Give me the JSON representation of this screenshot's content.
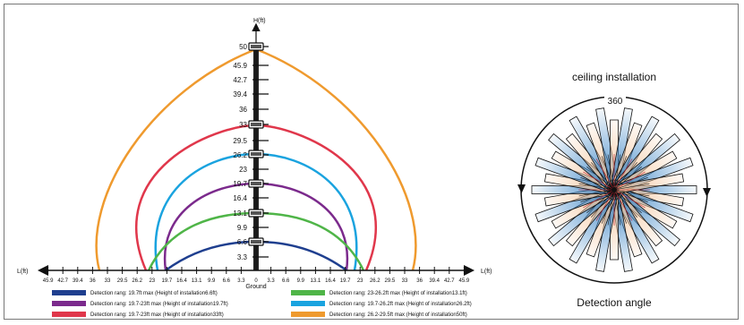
{
  "diagram": {
    "axis": {
      "h_label": "H(ft)",
      "l_label_left": "L(ft)",
      "l_label_right": "L(ft)",
      "ground_label": "Ground",
      "h_ticks": [
        "50",
        "45.9",
        "42.7",
        "39.4",
        "36",
        "33",
        "29.5",
        "26.2",
        "23",
        "19.7",
        "16.4",
        "13.1",
        "9.9",
        "6.6",
        "3.3"
      ],
      "l_ticks_left": [
        "45.9",
        "42.7",
        "39.4",
        "36",
        "33",
        "29.5",
        "26.2",
        "23",
        "19.7",
        "16.4",
        "13.1",
        "9.9",
        "6.6",
        "3.3"
      ],
      "l_zero": "0",
      "l_ticks_right": [
        "3.3",
        "6.6",
        "9.9",
        "13.1",
        "16.4",
        "19.7",
        "23",
        "26.2",
        "29.5",
        "33",
        "36",
        "39.4",
        "42.7",
        "45.9"
      ]
    },
    "zones": [
      {
        "label": "Detection rang: 19.7ft max (Height of installation6.6ft)",
        "color": "#1f3f8f"
      },
      {
        "label": "Detection rang: 23-26.2ft max (Height of installation13.1ft)",
        "color": "#4fb548"
      },
      {
        "label": "Detection rang: 19.7-23ft max (Height of installation19.7ft)",
        "color": "#7b2a8c"
      },
      {
        "label": "Detection rang: 19.7-26.2ft max (Height of installation26.2ft)",
        "color": "#1aa3df"
      },
      {
        "label": "Detection rang: 19.7-23ft max (Height of installation33ft)",
        "color": "#e0374b"
      },
      {
        "label": "Detection rang: 26.2-29.5ft max (Height of installation50ft)",
        "color": "#ef9a2e"
      }
    ]
  },
  "ceiling": {
    "title": "ceiling installation",
    "angle_value": "360",
    "caption": "Detection angle",
    "colors": {
      "blue": "#3d86c6",
      "peach": "#f4c49a"
    }
  }
}
